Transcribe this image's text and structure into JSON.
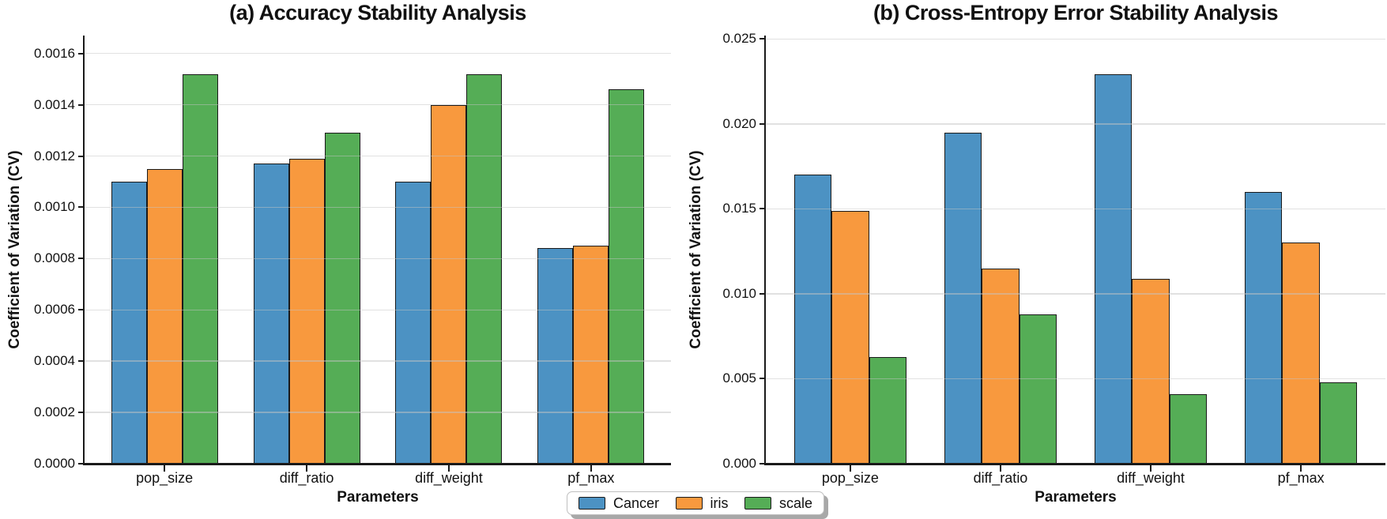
{
  "figure": {
    "background": "#ffffff",
    "axis_color": "#1a1a1a",
    "grid_color": "#c3c3c3"
  },
  "legend": {
    "position": "bottom-center",
    "items": [
      {
        "label": "Cancer",
        "color": "#4C92C3"
      },
      {
        "label": "iris",
        "color": "#F8993E"
      },
      {
        "label": "scale",
        "color": "#55AD56"
      }
    ]
  },
  "chart_data": [
    {
      "type": "bar",
      "title": "(a) Accuracy Stability Analysis",
      "xlabel": "Parameters",
      "ylabel": "Coefficient of Variation (CV)",
      "categories": [
        "pop_size",
        "diff_ratio",
        "diff_weight",
        "pf_max"
      ],
      "series": [
        {
          "name": "Cancer",
          "color": "#4C92C3",
          "values": [
            0.0011,
            0.00117,
            0.0011,
            0.00084
          ]
        },
        {
          "name": "iris",
          "color": "#F8993E",
          "values": [
            0.00115,
            0.00119,
            0.0014,
            0.00085
          ]
        },
        {
          "name": "scale",
          "color": "#55AD56",
          "values": [
            0.00152,
            0.00129,
            0.00152,
            0.00146
          ]
        }
      ],
      "ylim": [
        0,
        0.00167
      ],
      "ytick_step": 0.0002,
      "ytick_decimals": 4,
      "grid": true,
      "legend_position": "bottom-center-shared"
    },
    {
      "type": "bar",
      "title": "(b) Cross-Entropy Error Stability Analysis",
      "xlabel": "Parameters",
      "ylabel": "Coefficient of Variation (CV)",
      "categories": [
        "pop_size",
        "diff_ratio",
        "diff_weight",
        "pf_max"
      ],
      "series": [
        {
          "name": "Cancer",
          "color": "#4C92C3",
          "values": [
            0.017,
            0.0195,
            0.0229,
            0.016
          ]
        },
        {
          "name": "iris",
          "color": "#F8993E",
          "values": [
            0.0149,
            0.0115,
            0.0109,
            0.013
          ]
        },
        {
          "name": "scale",
          "color": "#55AD56",
          "values": [
            0.0063,
            0.0088,
            0.0041,
            0.0048
          ]
        }
      ],
      "ylim": [
        0,
        0.0252
      ],
      "ytick_step": 0.005,
      "ytick_decimals": 3,
      "grid": true,
      "legend_position": "bottom-center-shared"
    }
  ]
}
